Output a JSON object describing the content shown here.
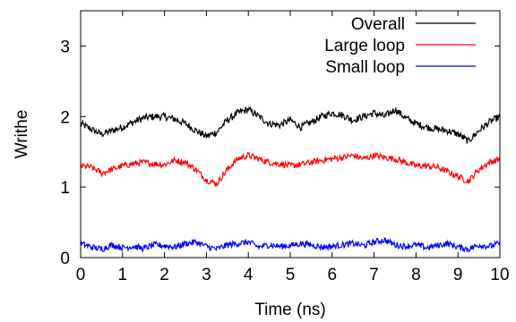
{
  "chart_data": {
    "type": "line",
    "xlabel": "Time (ns)",
    "ylabel": "Writhe",
    "xlim": [
      0,
      10
    ],
    "ylim": [
      0,
      3.5
    ],
    "xticks": [
      "0",
      "1",
      "2",
      "3",
      "4",
      "5",
      "6",
      "7",
      "8",
      "9",
      "10"
    ],
    "yticks": [
      "0",
      "1",
      "2",
      "3"
    ],
    "grid": false,
    "legend_position": "top-right",
    "x": [
      0,
      0.25,
      0.5,
      0.75,
      1,
      1.25,
      1.5,
      1.75,
      2,
      2.25,
      2.5,
      2.75,
      3,
      3.25,
      3.5,
      3.75,
      4,
      4.25,
      4.5,
      4.75,
      5,
      5.25,
      5.5,
      5.75,
      6,
      6.25,
      6.5,
      6.75,
      7,
      7.25,
      7.5,
      7.75,
      8,
      8.25,
      8.5,
      8.75,
      9,
      9.25,
      9.5,
      9.75,
      10
    ],
    "series": [
      {
        "name": "Overall",
        "color": "#000000",
        "values": [
          1.9,
          1.82,
          1.75,
          1.8,
          1.85,
          1.92,
          1.98,
          2.0,
          2.0,
          1.96,
          1.9,
          1.8,
          1.72,
          1.78,
          1.95,
          2.05,
          2.1,
          2.0,
          1.9,
          1.88,
          1.95,
          1.85,
          1.92,
          2.0,
          2.05,
          2.02,
          1.95,
          2.0,
          2.05,
          2.0,
          2.1,
          1.98,
          1.9,
          1.85,
          1.82,
          1.8,
          1.75,
          1.65,
          1.8,
          1.92,
          2.0
        ]
      },
      {
        "name": "Large loop",
        "color": "#ff0000",
        "values": [
          1.3,
          1.28,
          1.2,
          1.25,
          1.3,
          1.33,
          1.35,
          1.33,
          1.32,
          1.38,
          1.35,
          1.25,
          1.1,
          1.05,
          1.25,
          1.4,
          1.45,
          1.4,
          1.35,
          1.33,
          1.3,
          1.32,
          1.35,
          1.38,
          1.4,
          1.42,
          1.45,
          1.4,
          1.45,
          1.42,
          1.4,
          1.35,
          1.3,
          1.3,
          1.28,
          1.22,
          1.15,
          1.08,
          1.25,
          1.35,
          1.4
        ]
      },
      {
        "name": "Small loop",
        "color": "#0000ff",
        "values": [
          0.2,
          0.15,
          0.12,
          0.18,
          0.14,
          0.16,
          0.13,
          0.18,
          0.17,
          0.15,
          0.2,
          0.22,
          0.16,
          0.12,
          0.18,
          0.2,
          0.22,
          0.15,
          0.18,
          0.16,
          0.17,
          0.2,
          0.18,
          0.15,
          0.16,
          0.18,
          0.2,
          0.17,
          0.22,
          0.25,
          0.18,
          0.16,
          0.18,
          0.14,
          0.17,
          0.2,
          0.15,
          0.12,
          0.18,
          0.16,
          0.2
        ]
      }
    ]
  }
}
